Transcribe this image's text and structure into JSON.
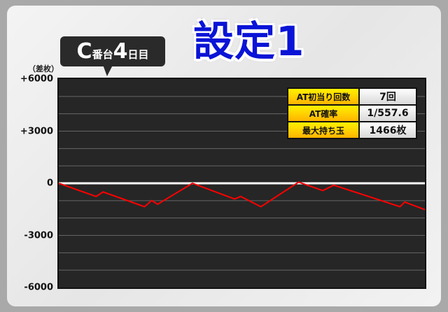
{
  "title": "設定1",
  "badge": {
    "machine": "C",
    "machine_suffix": "番台",
    "day": "4",
    "day_suffix": "日目"
  },
  "stats": [
    {
      "label": "AT初当り回数",
      "value": "7回"
    },
    {
      "label": "AT確率",
      "value": "1/557.6"
    },
    {
      "label": "最大持ち玉",
      "value": "1466枚"
    }
  ],
  "chart_data": {
    "type": "line",
    "ylabel": "（差枚）",
    "ylim": [
      -6000,
      6000
    ],
    "yticks": [
      6000,
      3000,
      0,
      -3000,
      -6000
    ],
    "ytick_labels": [
      "+6000",
      "+3000",
      "0",
      "-3000",
      "-6000"
    ],
    "grid": true,
    "grid_step": 1000,
    "x_progress": [
      0,
      0.102,
      0.121,
      0.234,
      0.254,
      0.27,
      0.365,
      0.48,
      0.497,
      0.552,
      0.655,
      0.721,
      0.751,
      0.932,
      0.945,
      1.0
    ],
    "values": [
      0,
      -760,
      -500,
      -1350,
      -990,
      -1210,
      0,
      -900,
      -760,
      -1350,
      70,
      -420,
      -110,
      -1350,
      -1080,
      -1520
    ],
    "line_color": "#ff0000",
    "background": "#262626"
  }
}
